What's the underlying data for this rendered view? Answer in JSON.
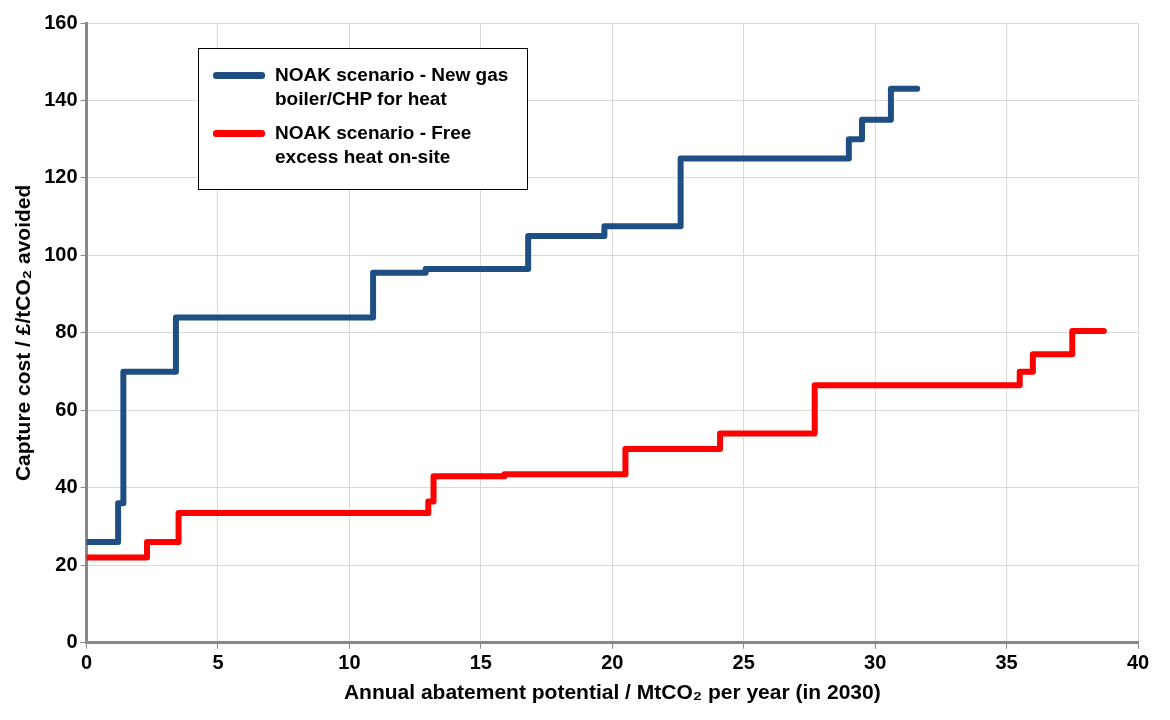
{
  "chart_data": {
    "type": "step",
    "xlabel": "Annual abatement potential / MtCO₂ per year (in 2030)",
    "ylabel": "Capture cost / £/tCO₂ avoided",
    "xlim": [
      0,
      40
    ],
    "xticks": [
      0,
      5,
      10,
      15,
      20,
      25,
      30,
      35,
      40
    ],
    "ylim": [
      0,
      160
    ],
    "yticks": [
      0,
      20,
      40,
      60,
      80,
      100,
      120,
      140,
      160
    ],
    "grid": true,
    "legend": "top left",
    "line_style": "solid",
    "marker": "none",
    "series": [
      {
        "name": "NOAK scenario - New gas boiler/CHP for heat",
        "color": "#1f4e82",
        "x": [
          0,
          1.2,
          1.4,
          3.4,
          10.9,
          12.9,
          16.8,
          19.7,
          22.6,
          29.0,
          29.5,
          30.6,
          31.6
        ],
        "values": [
          26,
          36,
          70,
          84,
          95.5,
          96.5,
          105,
          107.5,
          125,
          130,
          135,
          143,
          143
        ]
      },
      {
        "name": "NOAK scenario - Free excess heat on-site",
        "color": "#ff0000",
        "x": [
          0,
          2.3,
          3.5,
          13.0,
          13.2,
          15.9,
          20.5,
          24.1,
          27.7,
          35.5,
          36.0,
          37.5,
          38.7
        ],
        "values": [
          22,
          26,
          33.5,
          36.5,
          43,
          43.5,
          50,
          54,
          66.5,
          70,
          74.5,
          80.5,
          80.5
        ]
      }
    ]
  }
}
